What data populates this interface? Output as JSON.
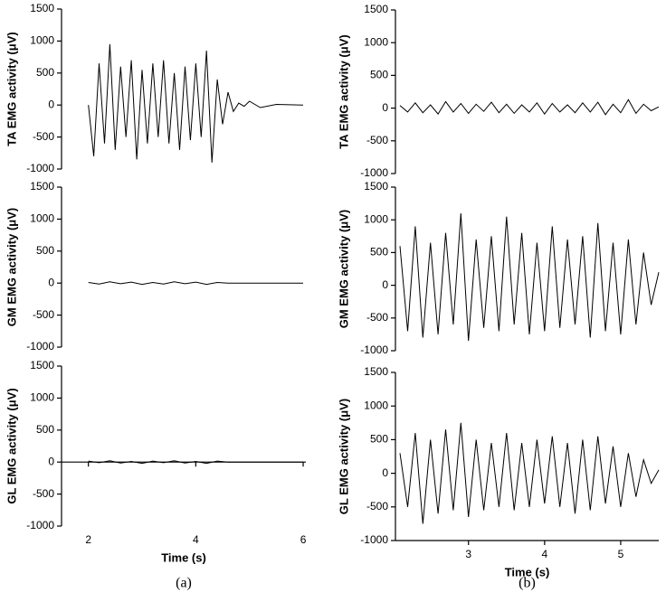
{
  "chart_data": [
    {
      "type": "line",
      "ylabel": "TA EMG activity (μV)",
      "x": [
        2.0,
        2.1,
        2.2,
        2.3,
        2.4,
        2.5,
        2.6,
        2.7,
        2.8,
        2.9,
        3.0,
        3.1,
        3.2,
        3.3,
        3.4,
        3.5,
        3.6,
        3.7,
        3.8,
        3.9,
        4.0,
        4.1,
        4.2,
        4.3,
        4.4,
        4.5,
        4.6,
        4.7,
        4.8,
        4.9,
        5.0,
        5.2,
        5.5,
        6.0
      ],
      "series": [
        {
          "color": "#000000",
          "values": [
            0,
            -800,
            650,
            -600,
            950,
            -700,
            600,
            -500,
            700,
            -850,
            550,
            -600,
            650,
            -500,
            700,
            -600,
            500,
            -700,
            600,
            -550,
            650,
            -500,
            850,
            -900,
            400,
            -300,
            200,
            -100,
            30,
            -20,
            60,
            -40,
            10,
            0
          ]
        }
      ],
      "xlim": [
        1.5,
        6.05
      ],
      "ylim": [
        -1000,
        1500
      ],
      "yticks": [
        -1000,
        -500,
        0,
        500,
        1000,
        1500
      ]
    },
    {
      "type": "line",
      "ylabel": "GM EMG activity (μV)",
      "x": [
        2.0,
        2.2,
        2.4,
        2.6,
        2.8,
        3.0,
        3.2,
        3.4,
        3.6,
        3.8,
        4.0,
        4.2,
        4.4,
        4.6,
        6.0
      ],
      "series": [
        {
          "color": "#000000",
          "values": [
            10,
            -15,
            20,
            -10,
            15,
            -20,
            10,
            -15,
            20,
            -10,
            15,
            -20,
            10,
            0,
            0
          ]
        }
      ],
      "xlim": [
        1.5,
        6.05
      ],
      "ylim": [
        -1000,
        1500
      ],
      "yticks": [
        -1000,
        -500,
        0,
        500,
        1000,
        1500
      ]
    },
    {
      "type": "line",
      "ylabel": "GL EMG activity (μV)",
      "x": [
        2.0,
        2.2,
        2.4,
        2.6,
        2.8,
        3.0,
        3.2,
        3.4,
        3.6,
        3.8,
        4.0,
        4.2,
        4.4,
        4.6,
        6.0
      ],
      "series": [
        {
          "color": "#000000",
          "values": [
            15,
            -10,
            20,
            -15,
            10,
            -20,
            15,
            -10,
            20,
            -15,
            10,
            -20,
            15,
            0,
            0
          ]
        }
      ],
      "xlim": [
        1.5,
        6.05
      ],
      "ylim": [
        -1000,
        1500
      ],
      "yticks": [
        -1000,
        -500,
        0,
        500,
        1000,
        1500
      ],
      "xticks": [
        2,
        4,
        6
      ],
      "xlabel": "Time (s)",
      "caption": "(a)"
    },
    {
      "type": "line",
      "ylabel": "TA EMG activity (μV)",
      "x": [
        2.1,
        2.2,
        2.3,
        2.4,
        2.5,
        2.6,
        2.7,
        2.8,
        2.9,
        3.0,
        3.1,
        3.2,
        3.3,
        3.4,
        3.5,
        3.6,
        3.7,
        3.8,
        3.9,
        4.0,
        4.1,
        4.2,
        4.3,
        4.4,
        4.5,
        4.6,
        4.7,
        4.8,
        4.9,
        5.0,
        5.1,
        5.2,
        5.3,
        5.4,
        5.5
      ],
      "series": [
        {
          "color": "#000000",
          "values": [
            40,
            -60,
            80,
            -70,
            50,
            -90,
            100,
            -60,
            70,
            -80,
            60,
            -50,
            90,
            -70,
            60,
            -80,
            50,
            -60,
            80,
            -90,
            70,
            -60,
            50,
            -70,
            80,
            -60,
            90,
            -100,
            60,
            -70,
            130,
            -80,
            60,
            -40,
            20
          ]
        }
      ],
      "xlim": [
        2.04,
        5.5
      ],
      "ylim": [
        -1000,
        1500
      ],
      "yticks": [
        -1000,
        -500,
        0,
        500,
        1000,
        1500
      ]
    },
    {
      "type": "line",
      "ylabel": "GM EMG activity (μV)",
      "x": [
        2.1,
        2.2,
        2.3,
        2.4,
        2.5,
        2.6,
        2.7,
        2.8,
        2.9,
        3.0,
        3.1,
        3.2,
        3.3,
        3.4,
        3.5,
        3.6,
        3.7,
        3.8,
        3.9,
        4.0,
        4.1,
        4.2,
        4.3,
        4.4,
        4.5,
        4.6,
        4.7,
        4.8,
        4.9,
        5.0,
        5.1,
        5.2,
        5.3,
        5.4,
        5.5
      ],
      "series": [
        {
          "color": "#000000",
          "values": [
            600,
            -700,
            900,
            -800,
            650,
            -750,
            800,
            -600,
            1100,
            -850,
            700,
            -650,
            750,
            -700,
            1050,
            -600,
            800,
            -750,
            650,
            -700,
            900,
            -650,
            700,
            -600,
            750,
            -800,
            950,
            -700,
            650,
            -750,
            700,
            -600,
            500,
            -300,
            200
          ]
        }
      ],
      "xlim": [
        2.04,
        5.5
      ],
      "ylim": [
        -1000,
        1500
      ],
      "yticks": [
        -1000,
        -500,
        0,
        500,
        1000,
        1500
      ]
    },
    {
      "type": "line",
      "ylabel": "GL EMG activity (μV)",
      "x": [
        2.1,
        2.2,
        2.3,
        2.4,
        2.5,
        2.6,
        2.7,
        2.8,
        2.9,
        3.0,
        3.1,
        3.2,
        3.3,
        3.4,
        3.5,
        3.6,
        3.7,
        3.8,
        3.9,
        4.0,
        4.1,
        4.2,
        4.3,
        4.4,
        4.5,
        4.6,
        4.7,
        4.8,
        4.9,
        5.0,
        5.1,
        5.2,
        5.3,
        5.4,
        5.5
      ],
      "series": [
        {
          "color": "#000000",
          "values": [
            300,
            -500,
            600,
            -750,
            500,
            -600,
            650,
            -550,
            750,
            -650,
            500,
            -550,
            450,
            -500,
            600,
            -550,
            450,
            -500,
            500,
            -450,
            550,
            -500,
            450,
            -600,
            500,
            -550,
            550,
            -450,
            400,
            -500,
            300,
            -350,
            200,
            -150,
            50
          ]
        }
      ],
      "xlim": [
        2.04,
        5.5
      ],
      "ylim": [
        -1000,
        1500
      ],
      "yticks": [
        -1000,
        -500,
        0,
        500,
        1000,
        1500
      ],
      "xticks": [
        3,
        4,
        5
      ],
      "xlabel": "Time (s)",
      "caption": "(b)"
    }
  ]
}
